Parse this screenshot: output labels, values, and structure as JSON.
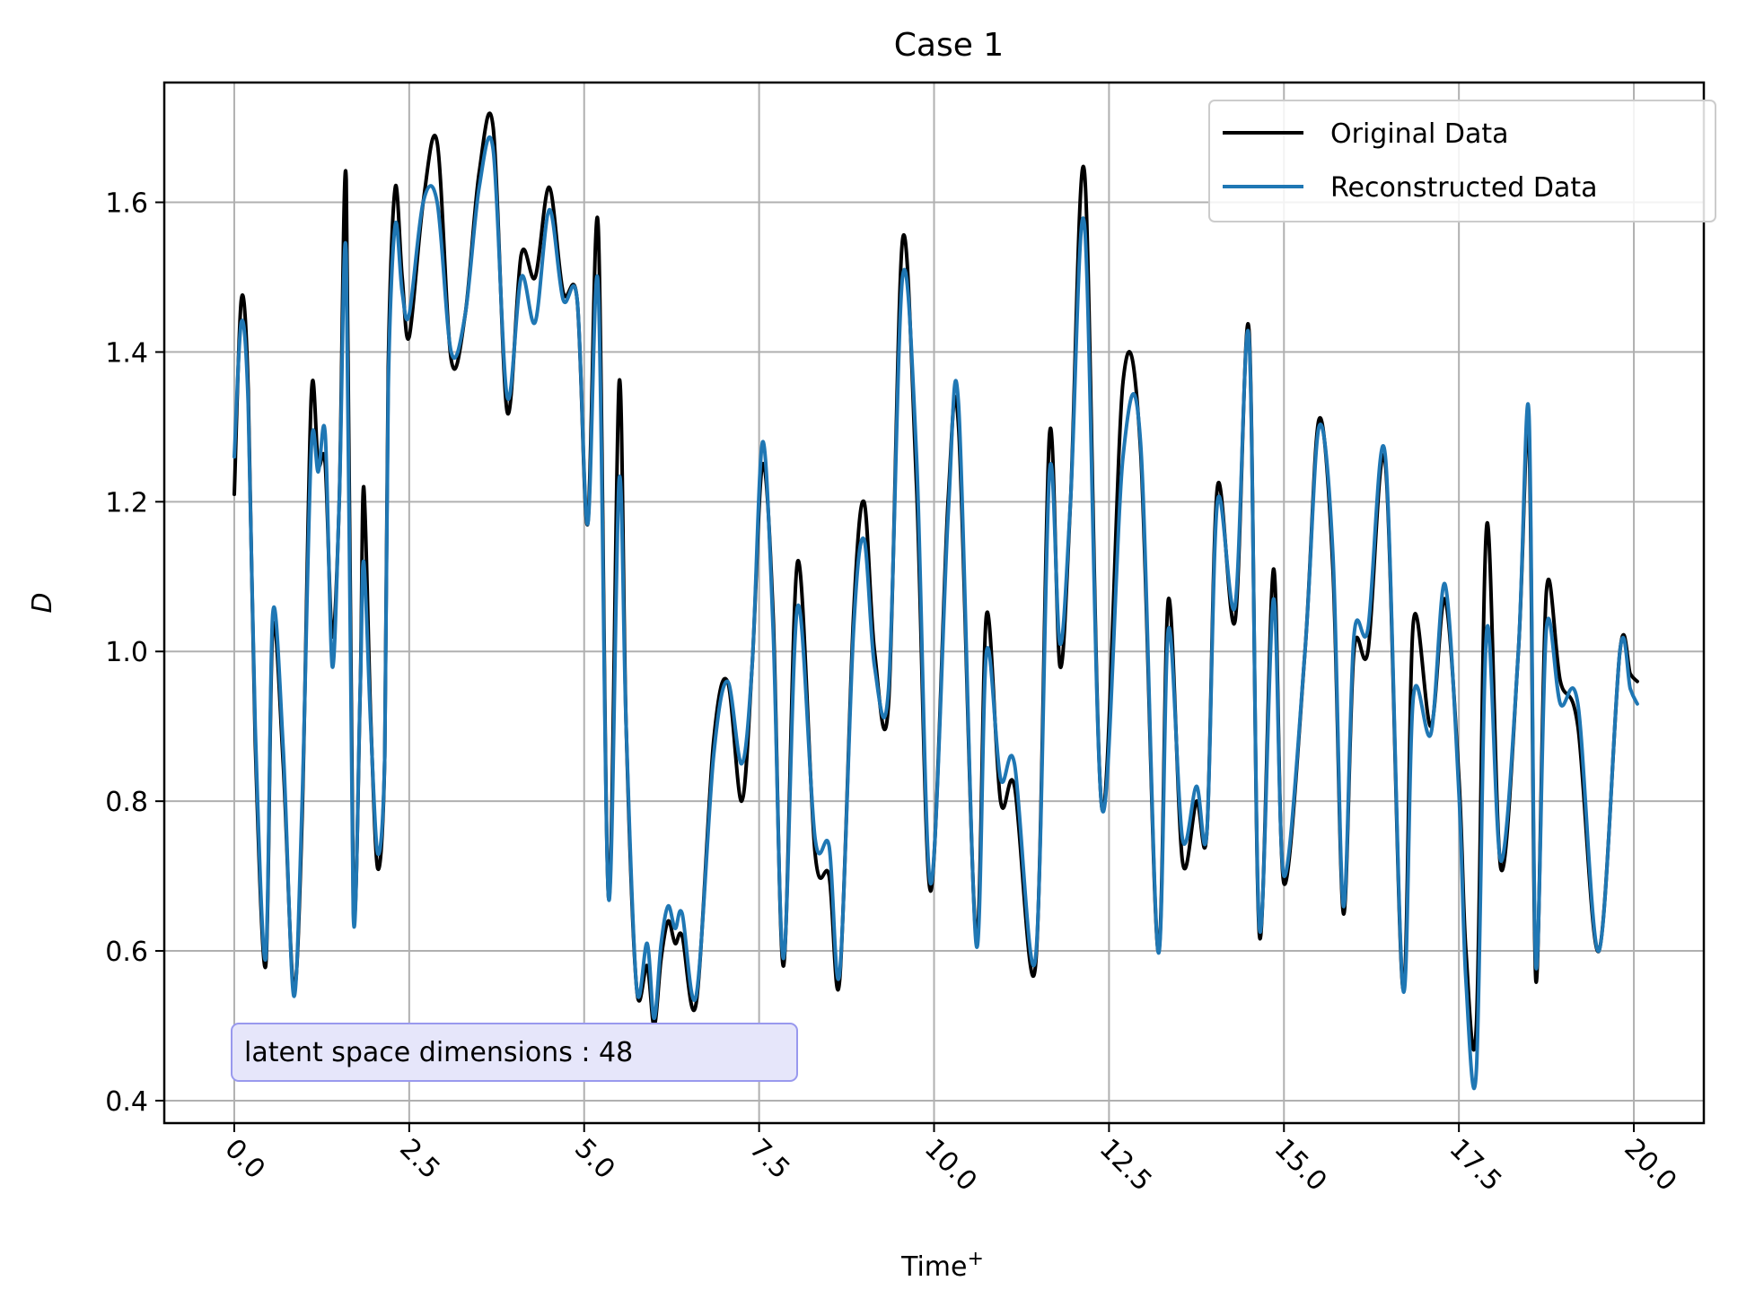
{
  "chart_data": {
    "type": "line",
    "title": "Case 1",
    "xlabel": "Time",
    "xlabel_superscript": "+",
    "ylabel": "D",
    "xlim": [
      -1.0,
      21.0
    ],
    "ylim": [
      0.37,
      1.76
    ],
    "xticks": [
      0.0,
      2.5,
      5.0,
      7.5,
      10.0,
      12.5,
      15.0,
      17.5,
      20.0
    ],
    "xtick_labels": [
      "0.0",
      "2.5",
      "5.0",
      "7.5",
      "10.0",
      "12.5",
      "15.0",
      "17.5",
      "20.0"
    ],
    "yticks": [
      0.4,
      0.6,
      0.8,
      1.0,
      1.2,
      1.4,
      1.6
    ],
    "ytick_labels": [
      "0.4",
      "0.6",
      "0.8",
      "1.0",
      "1.2",
      "1.4",
      "1.6"
    ],
    "grid": true,
    "legend_position": "top-right",
    "annotation": "latent space dimensions : 48",
    "colors": {
      "original": "#000000",
      "reconstructed": "#1f77b4",
      "grid": "#b0b0b0",
      "annotation_bg": "#e6e6fa",
      "annotation_border": "#9999ee"
    },
    "series": [
      {
        "name": "Original Data",
        "x": [
          0.0,
          0.1,
          0.2,
          0.3,
          0.45,
          0.55,
          0.7,
          0.85,
          0.97,
          1.1,
          1.2,
          1.3,
          1.4,
          1.5,
          1.6,
          1.7,
          1.8,
          1.85,
          1.95,
          2.05,
          2.15,
          2.2,
          2.3,
          2.4,
          2.5,
          2.7,
          2.9,
          3.1,
          3.3,
          3.5,
          3.7,
          3.9,
          4.1,
          4.3,
          4.5,
          4.7,
          4.9,
          5.05,
          5.2,
          5.35,
          5.5,
          5.6,
          5.75,
          5.9,
          6.0,
          6.1,
          6.2,
          6.3,
          6.4,
          6.6,
          6.85,
          7.05,
          7.25,
          7.4,
          7.55,
          7.7,
          7.85,
          8.05,
          8.3,
          8.5,
          8.65,
          8.85,
          9.0,
          9.15,
          9.35,
          9.55,
          9.75,
          9.95,
          10.2,
          10.35,
          10.6,
          10.75,
          10.95,
          11.15,
          11.45,
          11.65,
          11.8,
          11.95,
          12.15,
          12.4,
          12.7,
          12.95,
          13.2,
          13.35,
          13.55,
          13.75,
          13.9,
          14.05,
          14.3,
          14.5,
          14.65,
          14.85,
          15.0,
          15.3,
          15.5,
          15.7,
          15.85,
          16.0,
          16.2,
          16.45,
          16.7,
          16.85,
          17.1,
          17.3,
          17.5,
          17.6,
          17.75,
          17.9,
          18.1,
          18.35,
          18.5,
          18.6,
          18.75,
          18.95,
          19.2,
          19.5,
          19.8,
          19.95,
          20.05
        ],
        "y": [
          1.21,
          1.47,
          1.35,
          0.88,
          0.58,
          1.03,
          0.85,
          0.55,
          0.78,
          1.34,
          1.25,
          1.25,
          1.02,
          1.2,
          1.63,
          0.67,
          0.95,
          1.22,
          0.91,
          0.71,
          0.86,
          1.38,
          1.62,
          1.5,
          1.42,
          1.6,
          1.68,
          1.39,
          1.45,
          1.64,
          1.7,
          1.32,
          1.53,
          1.5,
          1.62,
          1.48,
          1.47,
          1.17,
          1.57,
          0.67,
          1.36,
          0.9,
          0.55,
          0.58,
          0.5,
          0.59,
          0.64,
          0.61,
          0.62,
          0.53,
          0.88,
          0.96,
          0.8,
          0.98,
          1.25,
          1.05,
          0.58,
          1.12,
          0.73,
          0.7,
          0.56,
          1.05,
          1.2,
          1.0,
          0.93,
          1.55,
          1.22,
          0.68,
          1.2,
          1.3,
          0.62,
          1.05,
          0.8,
          0.82,
          0.58,
          1.29,
          0.98,
          1.2,
          1.64,
          0.79,
          1.36,
          1.27,
          0.6,
          1.07,
          0.72,
          0.8,
          0.76,
          1.22,
          1.04,
          1.43,
          0.62,
          1.11,
          0.69,
          1.0,
          1.31,
          1.11,
          0.65,
          1.0,
          1.0,
          1.25,
          0.55,
          1.04,
          0.9,
          1.07,
          0.83,
          0.6,
          0.5,
          1.17,
          0.71,
          1.0,
          1.29,
          0.56,
          1.08,
          0.96,
          0.9,
          0.6,
          1.0,
          0.97,
          0.96
        ]
      },
      {
        "name": "Reconstructed Data",
        "x": [
          0.0,
          0.1,
          0.2,
          0.3,
          0.45,
          0.55,
          0.7,
          0.85,
          0.97,
          1.1,
          1.2,
          1.3,
          1.4,
          1.5,
          1.6,
          1.7,
          1.8,
          1.85,
          1.95,
          2.05,
          2.15,
          2.2,
          2.3,
          2.4,
          2.5,
          2.7,
          2.9,
          3.1,
          3.3,
          3.5,
          3.7,
          3.9,
          4.1,
          4.3,
          4.5,
          4.7,
          4.9,
          5.05,
          5.2,
          5.35,
          5.5,
          5.6,
          5.75,
          5.9,
          6.0,
          6.1,
          6.2,
          6.3,
          6.4,
          6.6,
          6.85,
          7.05,
          7.25,
          7.4,
          7.55,
          7.7,
          7.85,
          8.05,
          8.3,
          8.5,
          8.65,
          8.85,
          9.0,
          9.15,
          9.35,
          9.55,
          9.75,
          9.95,
          10.2,
          10.35,
          10.6,
          10.75,
          10.95,
          11.15,
          11.45,
          11.65,
          11.8,
          11.95,
          12.15,
          12.4,
          12.7,
          12.95,
          13.2,
          13.35,
          13.55,
          13.75,
          13.9,
          14.05,
          14.3,
          14.5,
          14.65,
          14.85,
          15.0,
          15.3,
          15.5,
          15.7,
          15.85,
          16.0,
          16.2,
          16.45,
          16.7,
          16.85,
          17.1,
          17.3,
          17.5,
          17.6,
          17.75,
          17.9,
          18.1,
          18.35,
          18.5,
          18.6,
          18.75,
          18.95,
          19.2,
          19.5,
          19.8,
          19.95,
          20.05
        ],
        "y": [
          1.26,
          1.44,
          1.33,
          0.9,
          0.59,
          1.05,
          0.87,
          0.54,
          0.8,
          1.27,
          1.24,
          1.29,
          0.98,
          1.2,
          1.53,
          0.65,
          0.95,
          1.12,
          0.9,
          0.73,
          0.86,
          1.35,
          1.57,
          1.48,
          1.45,
          1.6,
          1.6,
          1.4,
          1.45,
          1.62,
          1.67,
          1.34,
          1.5,
          1.44,
          1.59,
          1.47,
          1.47,
          1.17,
          1.49,
          0.67,
          1.23,
          0.9,
          0.55,
          0.61,
          0.51,
          0.61,
          0.66,
          0.63,
          0.65,
          0.54,
          0.86,
          0.96,
          0.85,
          0.98,
          1.28,
          1.03,
          0.59,
          1.06,
          0.75,
          0.74,
          0.57,
          1.03,
          1.15,
          0.98,
          0.95,
          1.5,
          1.26,
          0.69,
          1.18,
          1.33,
          0.61,
          1.0,
          0.83,
          0.85,
          0.59,
          1.24,
          1.01,
          1.2,
          1.57,
          0.79,
          1.26,
          1.28,
          0.6,
          1.03,
          0.75,
          0.82,
          0.76,
          1.2,
          1.06,
          1.42,
          0.63,
          1.07,
          0.7,
          1.0,
          1.3,
          1.13,
          0.66,
          1.02,
          1.03,
          1.26,
          0.55,
          0.94,
          0.89,
          1.09,
          0.81,
          0.56,
          0.44,
          1.03,
          0.72,
          1.0,
          1.32,
          0.58,
          1.03,
          0.93,
          0.93,
          0.6,
          1.0,
          0.95,
          0.93
        ]
      }
    ]
  }
}
